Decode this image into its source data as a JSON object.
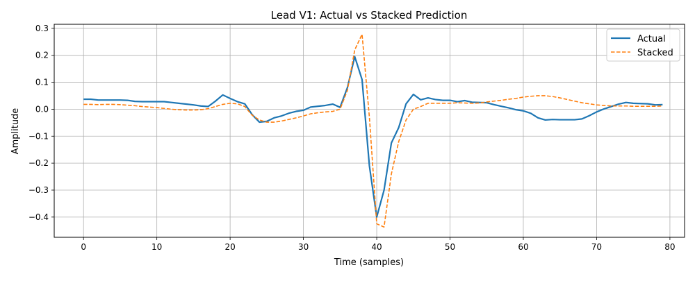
{
  "chart_data": {
    "type": "line",
    "title": "Lead V1: Actual vs Stacked Prediction",
    "xlabel": "Time (samples)",
    "ylabel": "Amplitude",
    "xlim": [
      -4,
      82
    ],
    "ylim": [
      -0.475,
      0.315
    ],
    "xticks": [
      0,
      10,
      20,
      30,
      40,
      50,
      60,
      70,
      80
    ],
    "xtick_labels": [
      "0",
      "10",
      "20",
      "30",
      "40",
      "50",
      "60",
      "70",
      "80"
    ],
    "yticks": [
      0.3,
      0.2,
      0.1,
      0.0,
      -0.1,
      -0.2,
      -0.3,
      -0.4
    ],
    "ytick_labels": [
      "0.3",
      "0.2",
      "0.1",
      "0.0",
      "−0.1",
      "−0.2",
      "−0.3",
      "−0.4"
    ],
    "grid": true,
    "legend_position": "top-right",
    "x": [
      0,
      1,
      2,
      3,
      4,
      5,
      6,
      7,
      8,
      9,
      10,
      11,
      12,
      13,
      14,
      15,
      16,
      17,
      18,
      19,
      20,
      21,
      22,
      23,
      24,
      25,
      26,
      27,
      28,
      29,
      30,
      31,
      32,
      33,
      34,
      35,
      36,
      37,
      38,
      39,
      40,
      41,
      42,
      43,
      44,
      45,
      46,
      47,
      48,
      49,
      50,
      51,
      52,
      53,
      54,
      55,
      56,
      57,
      58,
      59,
      60,
      61,
      62,
      63,
      64,
      65,
      66,
      67,
      68,
      69,
      70,
      71,
      72,
      73,
      74,
      75,
      76,
      77,
      78,
      79
    ],
    "series": [
      {
        "name": "Actual",
        "color": "#1f77b4",
        "style": "solid",
        "values": [
          0.037,
          0.037,
          0.034,
          0.034,
          0.034,
          0.034,
          0.033,
          0.029,
          0.028,
          0.028,
          0.028,
          0.028,
          0.025,
          0.022,
          0.019,
          0.016,
          0.012,
          0.01,
          0.03,
          0.053,
          0.04,
          0.028,
          0.02,
          -0.02,
          -0.048,
          -0.045,
          -0.032,
          -0.025,
          -0.015,
          -0.008,
          -0.004,
          0.008,
          0.011,
          0.014,
          0.019,
          0.007,
          0.08,
          0.195,
          0.11,
          -0.21,
          -0.4,
          -0.3,
          -0.125,
          -0.068,
          0.02,
          0.055,
          0.035,
          0.042,
          0.036,
          0.033,
          0.033,
          0.028,
          0.032,
          0.026,
          0.025,
          0.024,
          0.017,
          0.011,
          0.005,
          -0.002,
          -0.006,
          -0.015,
          -0.032,
          -0.04,
          -0.038,
          -0.039,
          -0.039,
          -0.039,
          -0.036,
          -0.024,
          -0.01,
          0.001,
          0.01,
          0.019,
          0.025,
          0.022,
          0.021,
          0.02,
          0.016,
          0.017
        ]
      },
      {
        "name": "Stacked",
        "color": "#ff7f0e",
        "style": "dashed",
        "values": [
          0.018,
          0.018,
          0.017,
          0.018,
          0.018,
          0.017,
          0.015,
          0.013,
          0.01,
          0.008,
          0.006,
          0.003,
          0.0,
          -0.002,
          -0.003,
          -0.003,
          -0.002,
          0.002,
          0.01,
          0.018,
          0.022,
          0.02,
          0.01,
          -0.022,
          -0.04,
          -0.048,
          -0.048,
          -0.044,
          -0.038,
          -0.032,
          -0.025,
          -0.017,
          -0.013,
          -0.01,
          -0.008,
          0.0,
          0.07,
          0.22,
          0.278,
          -0.03,
          -0.425,
          -0.437,
          -0.24,
          -0.12,
          -0.04,
          0.0,
          0.01,
          0.022,
          0.022,
          0.022,
          0.022,
          0.024,
          0.023,
          0.022,
          0.023,
          0.027,
          0.03,
          0.033,
          0.037,
          0.04,
          0.045,
          0.048,
          0.05,
          0.05,
          0.047,
          0.042,
          0.036,
          0.03,
          0.024,
          0.02,
          0.016,
          0.014,
          0.012,
          0.012,
          0.012,
          0.011,
          0.011,
          0.011,
          0.011,
          0.012
        ]
      }
    ]
  }
}
